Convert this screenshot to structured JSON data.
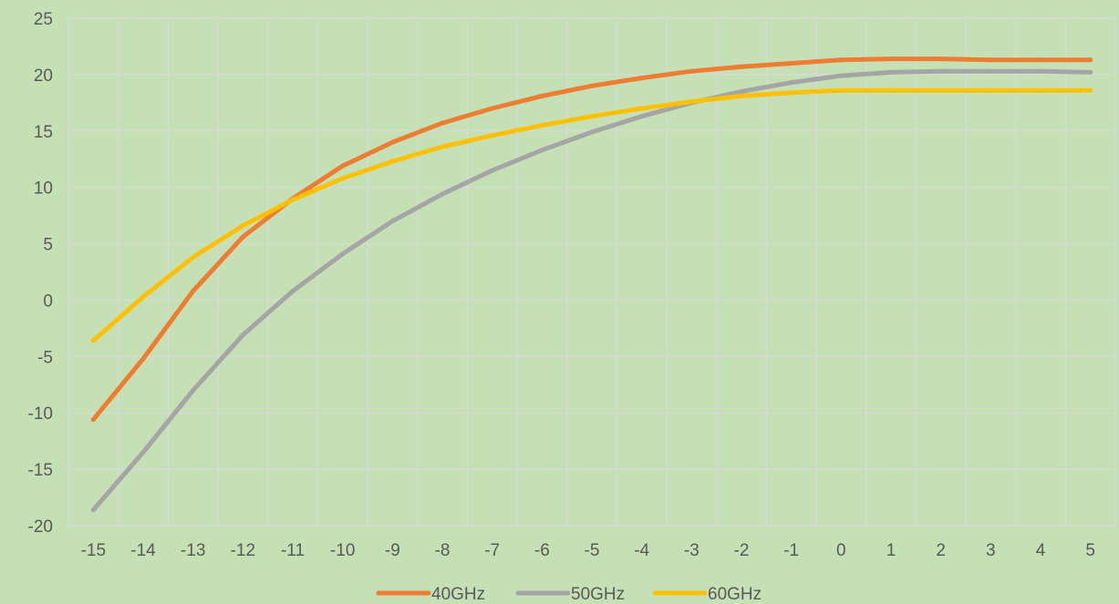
{
  "chart_data": {
    "type": "line",
    "title": "",
    "xlabel": "",
    "ylabel": "",
    "categories": [
      "-15",
      "-14",
      "-13",
      "-12",
      "-11",
      "-10",
      "-9",
      "-8",
      "-7",
      "-6",
      "-5",
      "-4",
      "-3",
      "-2",
      "-1",
      "0",
      "1",
      "2",
      "3",
      "4",
      "5"
    ],
    "ylim": [
      -20,
      25
    ],
    "yticks": [
      "25",
      "20",
      "15",
      "10",
      "5",
      "0",
      "-5",
      "-10",
      "-15",
      "-20"
    ],
    "grid": true,
    "legend_position": "bottom",
    "series": [
      {
        "name": "40GHz",
        "color": "#ed7d31",
        "values": [
          -10.6,
          -5.2,
          0.8,
          5.6,
          9.0,
          11.9,
          14.0,
          15.7,
          17.0,
          18.1,
          19.0,
          19.7,
          20.3,
          20.7,
          21.0,
          21.3,
          21.4,
          21.4,
          21.3,
          21.3,
          21.3
        ]
      },
      {
        "name": "50GHz",
        "color": "#a5a5a5",
        "values": [
          -18.6,
          -13.5,
          -8.0,
          -3.1,
          0.8,
          4.1,
          7.0,
          9.4,
          11.5,
          13.3,
          14.9,
          16.3,
          17.5,
          18.5,
          19.3,
          19.9,
          20.2,
          20.3,
          20.3,
          20.3,
          20.2
        ]
      },
      {
        "name": "60GHz",
        "color": "#ffc000",
        "values": [
          -3.6,
          0.3,
          3.8,
          6.6,
          8.9,
          10.8,
          12.3,
          13.6,
          14.6,
          15.5,
          16.3,
          17.0,
          17.6,
          18.1,
          18.4,
          18.6,
          18.6,
          18.6,
          18.6,
          18.6,
          18.6
        ]
      }
    ]
  }
}
